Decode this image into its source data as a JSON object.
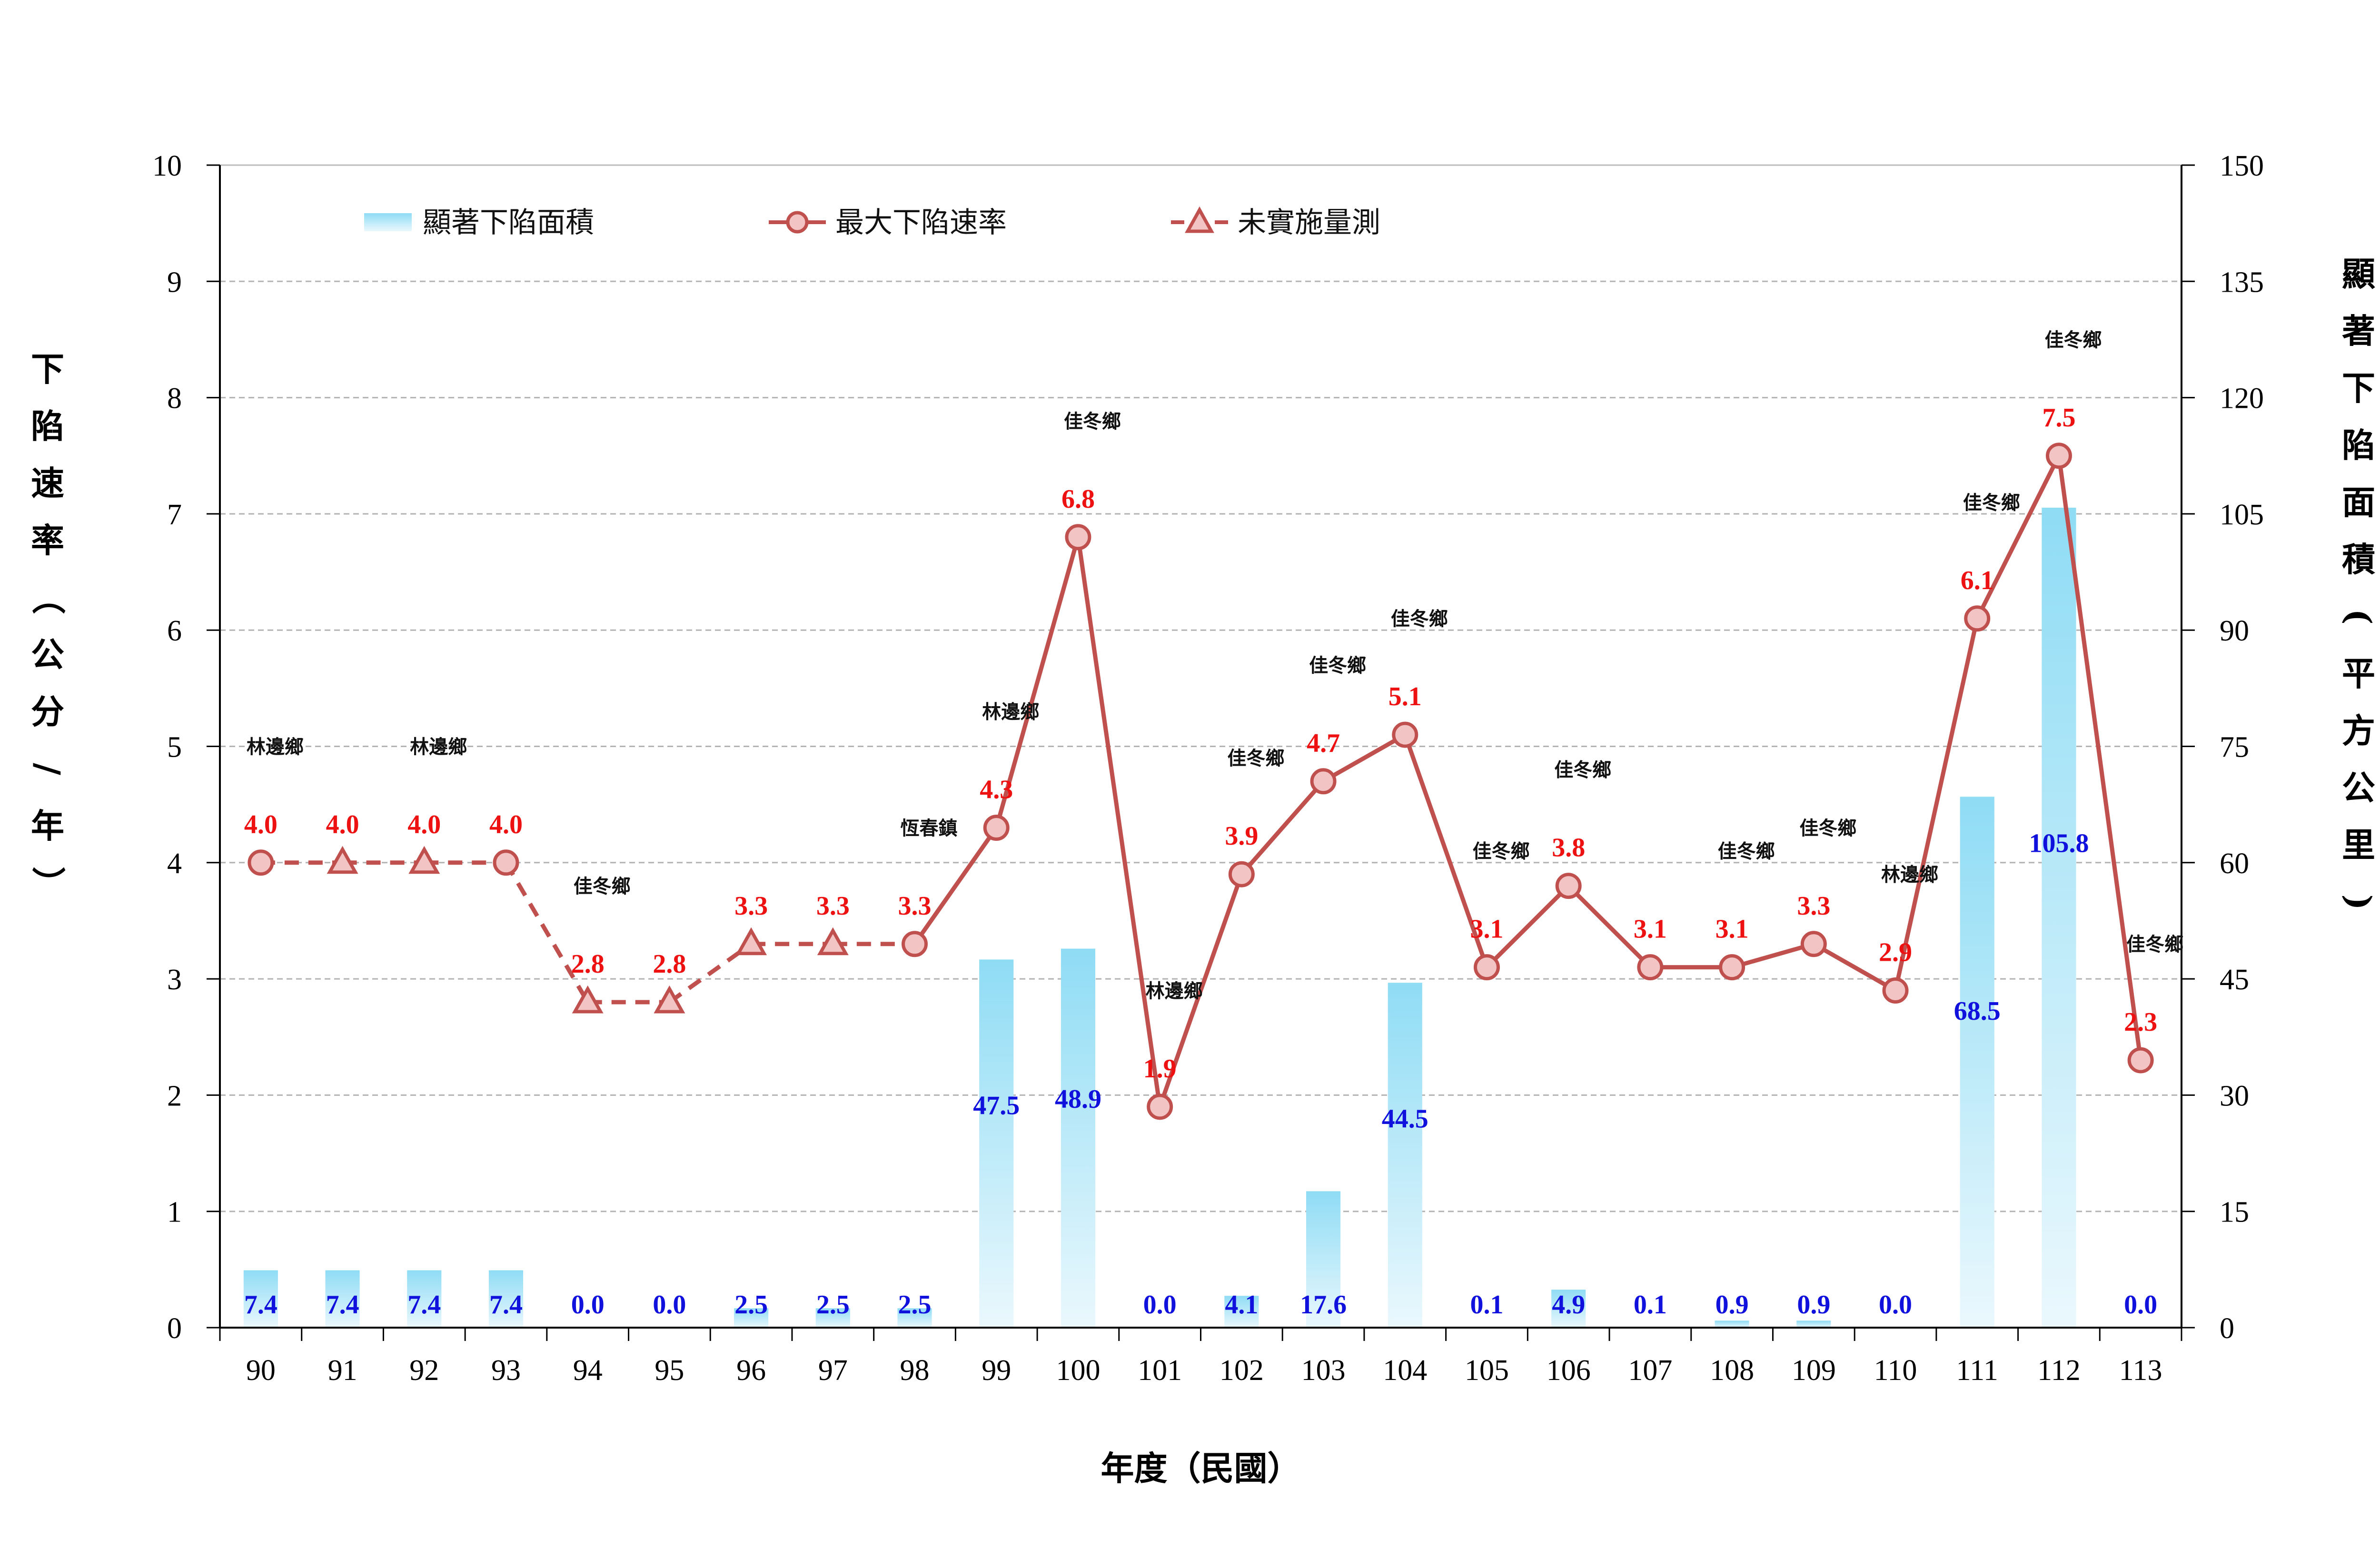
{
  "chart_data": {
    "type": "bar+line",
    "xlabel": "年度（民國）",
    "y_left_label": "下陷速率（公分/年）",
    "y_right_label": "顯著下陷面積(平方公里)",
    "y_left_lim": [
      0,
      10
    ],
    "y_left_ticks": [
      "0",
      "1",
      "2",
      "3",
      "4",
      "5",
      "6",
      "7",
      "8",
      "9",
      "10"
    ],
    "y_right_lim": [
      0,
      150
    ],
    "y_right_ticks": [
      "0",
      "15",
      "30",
      "45",
      "60",
      "75",
      "90",
      "105",
      "120",
      "135",
      "150"
    ],
    "grid": true,
    "legend_position": "top-left",
    "categories": [
      "90",
      "91",
      "92",
      "93",
      "94",
      "95",
      "96",
      "97",
      "98",
      "99",
      "100",
      "101",
      "102",
      "103",
      "104",
      "105",
      "106",
      "107",
      "108",
      "109",
      "110",
      "111",
      "112",
      "113"
    ],
    "series": [
      {
        "name": "顯著下陷面積",
        "kind": "bar",
        "axis": "right",
        "values": [
          7.4,
          7.4,
          7.4,
          7.4,
          0.0,
          0.0,
          2.5,
          2.5,
          2.5,
          47.5,
          48.9,
          0.0,
          4.1,
          17.6,
          44.5,
          0.1,
          4.9,
          0.1,
          0.9,
          0.9,
          0.0,
          68.5,
          105.8,
          0.0
        ],
        "labels": [
          "7.4",
          "7.4",
          "7.4",
          "7.4",
          "0.0",
          "0.0",
          "2.5",
          "2.5",
          "2.5",
          "47.5",
          "48.9",
          "0.0",
          "4.1",
          "17.6",
          "44.5",
          "0.1",
          "4.9",
          "0.1",
          "0.9",
          "0.9",
          "0.0",
          "68.5",
          "105.8",
          "0.0"
        ]
      },
      {
        "name": "最大下陷速率",
        "kind": "line-circle",
        "axis": "left",
        "values": [
          4.0,
          4.0,
          4.0,
          4.0,
          2.8,
          2.8,
          3.3,
          3.3,
          3.3,
          4.3,
          6.8,
          1.9,
          3.9,
          4.7,
          5.1,
          3.1,
          3.8,
          3.1,
          3.1,
          3.3,
          2.9,
          6.1,
          7.5,
          2.3
        ],
        "labels": [
          "4.0",
          "4.0",
          "4.0",
          "4.0",
          "2.8",
          "2.8",
          "3.3",
          "3.3",
          "3.3",
          "4.3",
          "6.8",
          "1.9",
          "3.9",
          "4.7",
          "5.1",
          "3.1",
          "3.8",
          "3.1",
          "3.1",
          "3.3",
          "2.9",
          "6.1",
          "7.5",
          "2.3"
        ],
        "unmeasured": [
          false,
          true,
          true,
          false,
          true,
          true,
          true,
          true,
          false,
          false,
          false,
          false,
          false,
          false,
          false,
          false,
          false,
          false,
          false,
          false,
          false,
          false,
          false,
          false
        ]
      }
    ],
    "legend": {
      "area": "顯著下陷面積",
      "rate": "最大下陷速率",
      "unmeasured": "未實施量測"
    },
    "locations": [
      "林邊鄉",
      "",
      "林邊鄉",
      "",
      "佳冬鄉",
      "",
      "",
      "",
      "恆春鎮",
      "林邊鄉",
      "佳冬鄉",
      "林邊鄉",
      "佳冬鄉",
      "佳冬鄉",
      "佳冬鄉",
      "佳冬鄉",
      "佳冬鄉",
      "",
      "佳冬鄉",
      "佳冬鄉",
      "林邊鄉",
      "佳冬鄉",
      "佳冬鄉",
      "佳冬鄉"
    ],
    "colors": {
      "rate_line": "#c0504d",
      "marker_fill": "#f2c4c4",
      "bar_top": "#8fdcf5",
      "bar_bottom": "#e9f8fd",
      "rate_label": "#ee1111",
      "area_label": "#1111dd",
      "grid": "#b3b3b3"
    }
  }
}
